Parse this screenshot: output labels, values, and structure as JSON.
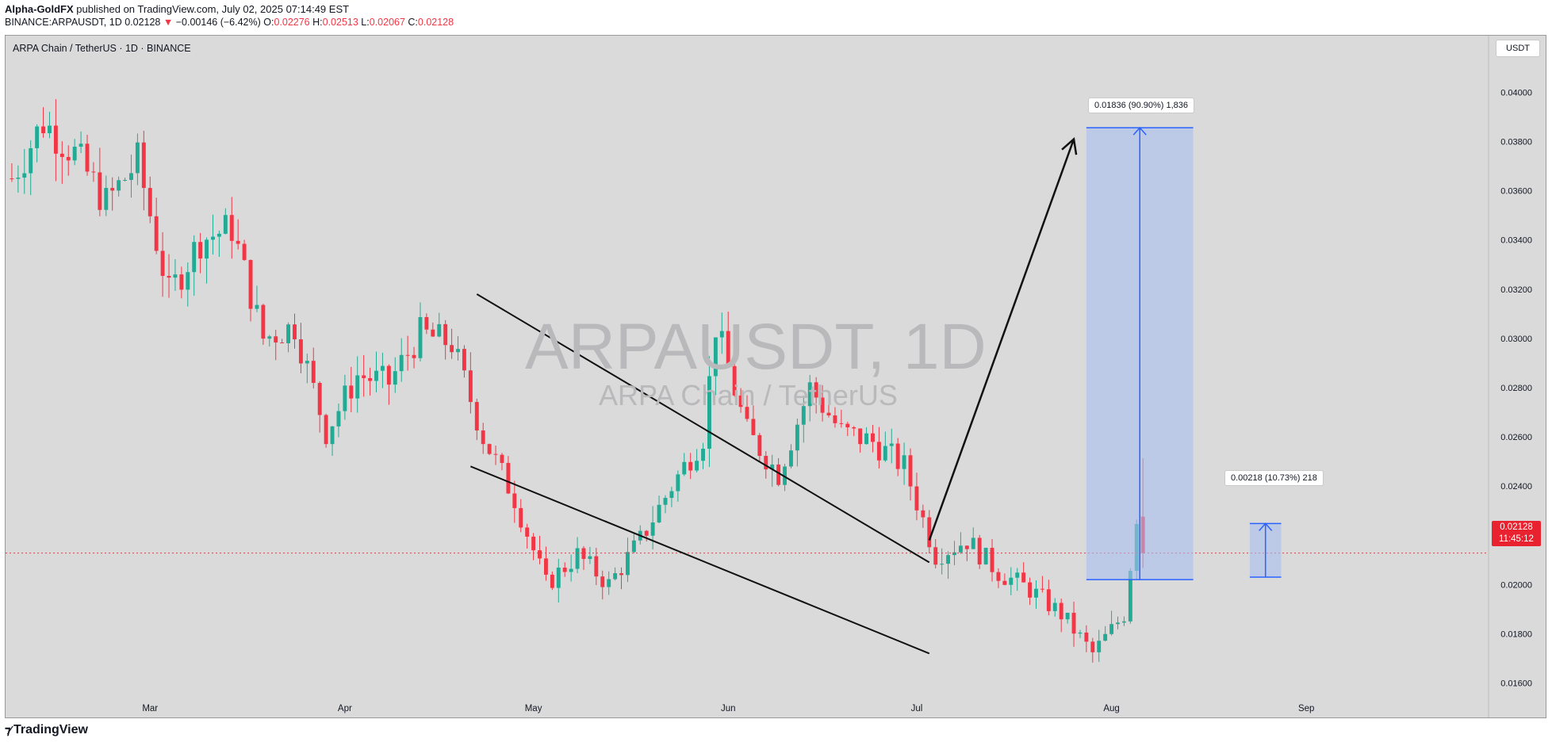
{
  "header": {
    "author": "Alpha-GoldFX",
    "published_text": "published on TradingView.com, July 02, 2025 07:14:49 EST",
    "symbol_line": "BINANCE:ARPAUSDT, 1D",
    "last": "0.02128",
    "change_arrow": "▼",
    "change": "−0.00146 (−6.42%)",
    "o_label": "O:",
    "o": "0.02276",
    "h_label": "H:",
    "h": "0.02513",
    "l_label": "L:",
    "l": "0.02067",
    "c_label": "C:",
    "c": "0.02128"
  },
  "chart_title": "ARPA Chain / TetherUS · 1D · BINANCE",
  "watermark": {
    "symbol": "ARPAUSDT, 1D",
    "name": "ARPA Chain / TetherUS"
  },
  "currency_button": "USDT",
  "price_tag": {
    "price": "0.02128",
    "countdown": "11:45:12"
  },
  "projections": [
    {
      "label": "0.01836 (90.90%) 1,836"
    },
    {
      "label": "0.00218 (10.73%) 218"
    }
  ],
  "footer": {
    "logo_text": "TradingView"
  },
  "colors": {
    "up": "#22ab94",
    "down": "#f23645",
    "panel": "#dadada",
    "projection_fill": "#a9bef0",
    "projection_line": "#2962ff"
  },
  "chart_data": {
    "type": "candlestick",
    "title": "ARPA Chain / TetherUS · 1D · BINANCE",
    "x_labels": [
      "Mar",
      "Apr",
      "May",
      "Jun",
      "Jul",
      "Aug",
      "Sep"
    ],
    "y_ticks": [
      "0.04000",
      "0.03800",
      "0.03600",
      "0.03400",
      "0.03200",
      "0.03000",
      "0.02800",
      "0.02600",
      "0.02400",
      "0.02200",
      "0.02000",
      "0.01800",
      "0.01600"
    ],
    "ylim": [
      0.0146,
      0.0423
    ],
    "x_range_days": [
      "2025-02-06",
      "2025-09-30"
    ],
    "closes_by_date": {
      "2025-02-07": 0.0365,
      "2025-02-12": 0.0388,
      "2025-02-17": 0.0375,
      "2025-02-22": 0.0355,
      "2025-02-27": 0.0372,
      "2025-03-04": 0.0318,
      "2025-03-09": 0.034,
      "2025-03-14": 0.0345,
      "2025-03-19": 0.03,
      "2025-03-24": 0.0305,
      "2025-03-29": 0.0262,
      "2025-04-03": 0.0285,
      "2025-04-08": 0.0282,
      "2025-04-13": 0.0302,
      "2025-04-18": 0.0298,
      "2025-04-23": 0.026,
      "2025-04-28": 0.0235,
      "2025-05-03": 0.02,
      "2025-05-08": 0.0212,
      "2025-05-13": 0.02,
      "2025-05-18": 0.0218,
      "2025-05-23": 0.024,
      "2025-05-28": 0.026,
      "2025-05-30": 0.0305,
      "2025-06-04": 0.0262,
      "2025-06-09": 0.0245,
      "2025-06-14": 0.028,
      "2025-06-19": 0.0262,
      "2025-06-24": 0.0258,
      "2025-06-29": 0.0248,
      "2025-07-04": 0.0212,
      "2025-07-09": 0.0218,
      "2025-07-14": 0.0205,
      "2025-07-19": 0.0198,
      "2025-07-24": 0.0188,
      "2025-07-29": 0.0172,
      "2025-08-03": 0.0188,
      "2025-08-05": 0.0228,
      "2025-08-06": 0.0213
    },
    "ohlc_last": {
      "open": 0.02276,
      "high": 0.02513,
      "low": 0.02067,
      "close": 0.02128
    },
    "falling_wedge": {
      "upper": [
        [
          "2025-04-22",
          0.0318
        ],
        [
          "2025-07-03",
          0.0209
        ]
      ],
      "lower": [
        [
          "2025-04-21",
          0.0248
        ],
        [
          "2025-07-03",
          0.0172
        ]
      ]
    },
    "target_arrow": [
      [
        "2025-07-03",
        0.0218
      ],
      [
        "2025-07-26",
        0.0381
      ]
    ],
    "projections": [
      {
        "from": 0.0202,
        "to": 0.03856,
        "x": [
          "2025-07-28",
          "2025-08-14"
        ],
        "label": "0.01836 (90.90%) 1,836"
      },
      {
        "from": 0.0203,
        "to": 0.02248,
        "x": [
          "2025-08-23",
          "2025-08-28"
        ],
        "label": "0.00218 (10.73%) 218"
      }
    ],
    "current_price": 0.02128,
    "grid": false
  }
}
